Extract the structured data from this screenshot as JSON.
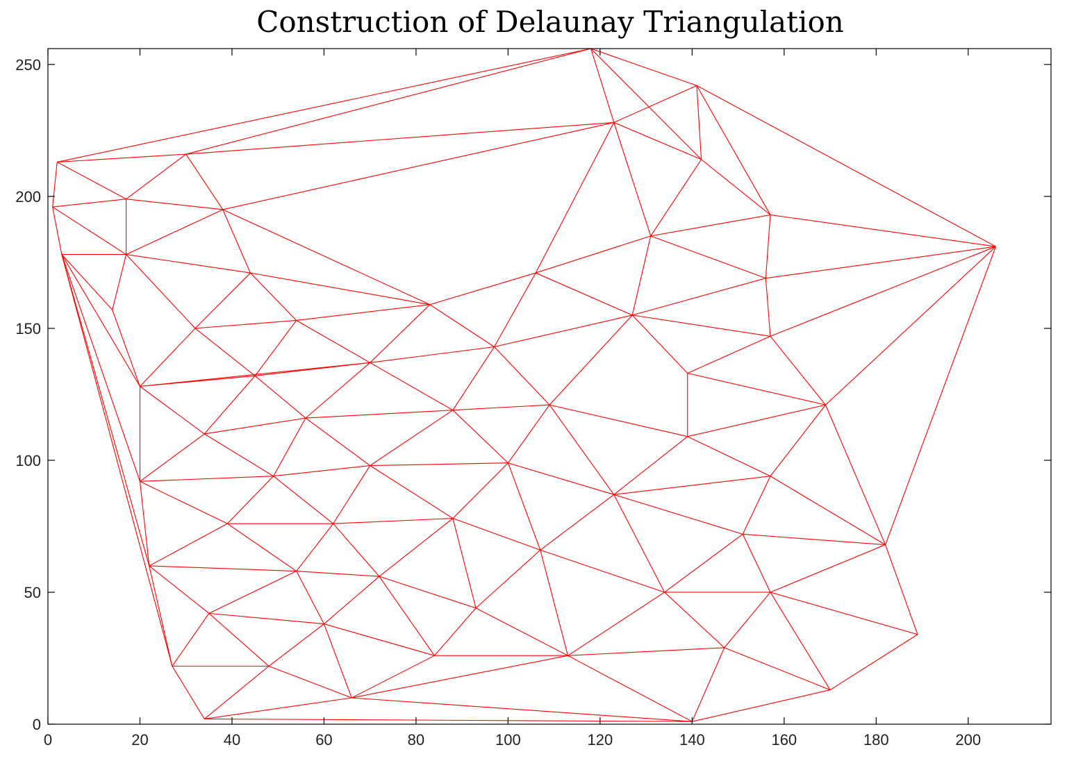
{
  "chart_data": {
    "type": "diagram-triangulation",
    "title": "Construction of Delaunay Triangulation",
    "xlabel": "",
    "ylabel": "",
    "xlim": [
      0,
      218
    ],
    "ylim": [
      0,
      256
    ],
    "xticks": [
      0,
      20,
      40,
      60,
      80,
      100,
      120,
      140,
      160,
      180,
      200
    ],
    "yticks": [
      0,
      50,
      100,
      150,
      200,
      250
    ],
    "grid": false,
    "edge_color": "#ff0000",
    "points": [
      [
        118,
        256
      ],
      [
        141,
        242
      ],
      [
        123,
        228
      ],
      [
        2,
        213
      ],
      [
        30,
        216
      ],
      [
        142,
        214
      ],
      [
        1,
        196
      ],
      [
        17,
        199
      ],
      [
        38,
        195
      ],
      [
        157,
        193
      ],
      [
        206,
        181
      ],
      [
        131,
        185
      ],
      [
        3,
        178
      ],
      [
        17,
        178
      ],
      [
        44,
        171
      ],
      [
        106,
        171
      ],
      [
        156,
        169
      ],
      [
        83,
        159
      ],
      [
        14,
        157
      ],
      [
        54,
        153
      ],
      [
        32,
        150
      ],
      [
        127,
        155
      ],
      [
        97,
        143
      ],
      [
        157,
        147
      ],
      [
        70,
        137
      ],
      [
        20,
        128
      ],
      [
        45,
        132
      ],
      [
        139,
        133
      ],
      [
        109,
        121
      ],
      [
        169,
        121
      ],
      [
        56,
        116
      ],
      [
        88,
        119
      ],
      [
        34,
        110
      ],
      [
        139,
        109
      ],
      [
        100,
        99
      ],
      [
        70,
        98
      ],
      [
        20,
        92
      ],
      [
        49,
        94
      ],
      [
        123,
        87
      ],
      [
        157,
        94
      ],
      [
        39,
        76
      ],
      [
        62,
        76
      ],
      [
        88,
        78
      ],
      [
        151,
        72
      ],
      [
        182,
        68
      ],
      [
        22,
        60
      ],
      [
        54,
        58
      ],
      [
        72,
        56
      ],
      [
        107,
        66
      ],
      [
        134,
        50
      ],
      [
        157,
        50
      ],
      [
        35,
        42
      ],
      [
        60,
        38
      ],
      [
        93,
        44
      ],
      [
        189,
        34
      ],
      [
        27,
        22
      ],
      [
        48,
        22
      ],
      [
        84,
        26
      ],
      [
        113,
        26
      ],
      [
        147,
        29
      ],
      [
        66,
        10
      ],
      [
        170,
        13
      ],
      [
        34,
        2
      ],
      [
        140,
        1
      ]
    ],
    "edges": [
      [
        3,
        0
      ],
      [
        4,
        0
      ],
      [
        0,
        2
      ],
      [
        0,
        1
      ],
      [
        0,
        5
      ],
      [
        1,
        2
      ],
      [
        1,
        5
      ],
      [
        1,
        9
      ],
      [
        1,
        10
      ],
      [
        2,
        4
      ],
      [
        2,
        8
      ],
      [
        2,
        5
      ],
      [
        2,
        11
      ],
      [
        2,
        15
      ],
      [
        3,
        4
      ],
      [
        3,
        6
      ],
      [
        3,
        7
      ],
      [
        4,
        7
      ],
      [
        4,
        8
      ],
      [
        5,
        11
      ],
      [
        5,
        9
      ],
      [
        6,
        7
      ],
      [
        6,
        12
      ],
      [
        6,
        13
      ],
      [
        7,
        13
      ],
      [
        7,
        8
      ],
      [
        8,
        13
      ],
      [
        8,
        14
      ],
      [
        8,
        17
      ],
      [
        9,
        11
      ],
      [
        9,
        10
      ],
      [
        9,
        16
      ],
      [
        10,
        16
      ],
      [
        10,
        23
      ],
      [
        10,
        29
      ],
      [
        10,
        44
      ],
      [
        11,
        15
      ],
      [
        11,
        21
      ],
      [
        11,
        16
      ],
      [
        12,
        13
      ],
      [
        12,
        18
      ],
      [
        12,
        25
      ],
      [
        12,
        36
      ],
      [
        12,
        45
      ],
      [
        12,
        55
      ],
      [
        13,
        18
      ],
      [
        13,
        14
      ],
      [
        13,
        20
      ],
      [
        14,
        20
      ],
      [
        14,
        19
      ],
      [
        14,
        17
      ],
      [
        15,
        17
      ],
      [
        15,
        21
      ],
      [
        15,
        22
      ],
      [
        16,
        21
      ],
      [
        16,
        23
      ],
      [
        17,
        19
      ],
      [
        17,
        22
      ],
      [
        17,
        24
      ],
      [
        18,
        25
      ],
      [
        19,
        20
      ],
      [
        19,
        24
      ],
      [
        19,
        26
      ],
      [
        20,
        25
      ],
      [
        20,
        26
      ],
      [
        21,
        22
      ],
      [
        21,
        23
      ],
      [
        21,
        27
      ],
      [
        21,
        28
      ],
      [
        22,
        24
      ],
      [
        22,
        31
      ],
      [
        22,
        28
      ],
      [
        23,
        27
      ],
      [
        23,
        29
      ],
      [
        24,
        25
      ],
      [
        24,
        26
      ],
      [
        24,
        30
      ],
      [
        24,
        31
      ],
      [
        25,
        26
      ],
      [
        25,
        32
      ],
      [
        25,
        36
      ],
      [
        26,
        30
      ],
      [
        26,
        32
      ],
      [
        27,
        33
      ],
      [
        27,
        29
      ],
      [
        28,
        31
      ],
      [
        28,
        34
      ],
      [
        28,
        33
      ],
      [
        28,
        38
      ],
      [
        29,
        33
      ],
      [
        29,
        39
      ],
      [
        29,
        44
      ],
      [
        30,
        31
      ],
      [
        30,
        32
      ],
      [
        30,
        37
      ],
      [
        30,
        35
      ],
      [
        31,
        35
      ],
      [
        31,
        34
      ],
      [
        32,
        37
      ],
      [
        32,
        36
      ],
      [
        33,
        38
      ],
      [
        33,
        39
      ],
      [
        34,
        35
      ],
      [
        34,
        38
      ],
      [
        34,
        42
      ],
      [
        34,
        48
      ],
      [
        35,
        37
      ],
      [
        35,
        41
      ],
      [
        35,
        42
      ],
      [
        36,
        37
      ],
      [
        36,
        40
      ],
      [
        36,
        45
      ],
      [
        37,
        40
      ],
      [
        37,
        41
      ],
      [
        38,
        39
      ],
      [
        38,
        43
      ],
      [
        38,
        48
      ],
      [
        38,
        49
      ],
      [
        39,
        43
      ],
      [
        39,
        44
      ],
      [
        40,
        41
      ],
      [
        40,
        45
      ],
      [
        40,
        46
      ],
      [
        41,
        42
      ],
      [
        41,
        46
      ],
      [
        41,
        47
      ],
      [
        42,
        47
      ],
      [
        42,
        53
      ],
      [
        42,
        48
      ],
      [
        43,
        44
      ],
      [
        43,
        49
      ],
      [
        43,
        50
      ],
      [
        44,
        50
      ],
      [
        44,
        54
      ],
      [
        45,
        46
      ],
      [
        45,
        51
      ],
      [
        45,
        55
      ],
      [
        46,
        47
      ],
      [
        46,
        51
      ],
      [
        46,
        52
      ],
      [
        47,
        52
      ],
      [
        47,
        53
      ],
      [
        47,
        57
      ],
      [
        48,
        53
      ],
      [
        48,
        49
      ],
      [
        48,
        58
      ],
      [
        49,
        58
      ],
      [
        49,
        50
      ],
      [
        49,
        59
      ],
      [
        50,
        54
      ],
      [
        50,
        59
      ],
      [
        50,
        61
      ],
      [
        51,
        52
      ],
      [
        51,
        55
      ],
      [
        51,
        56
      ],
      [
        52,
        56
      ],
      [
        52,
        57
      ],
      [
        52,
        60
      ],
      [
        53,
        57
      ],
      [
        53,
        58
      ],
      [
        54,
        61
      ],
      [
        55,
        56
      ],
      [
        55,
        62
      ],
      [
        56,
        60
      ],
      [
        56,
        62
      ],
      [
        57,
        58
      ],
      [
        57,
        60
      ],
      [
        58,
        60
      ],
      [
        58,
        59
      ],
      [
        58,
        63
      ],
      [
        59,
        63
      ],
      [
        59,
        61
      ],
      [
        60,
        62
      ],
      [
        60,
        63
      ],
      [
        61,
        63
      ],
      [
        62,
        63
      ]
    ]
  }
}
